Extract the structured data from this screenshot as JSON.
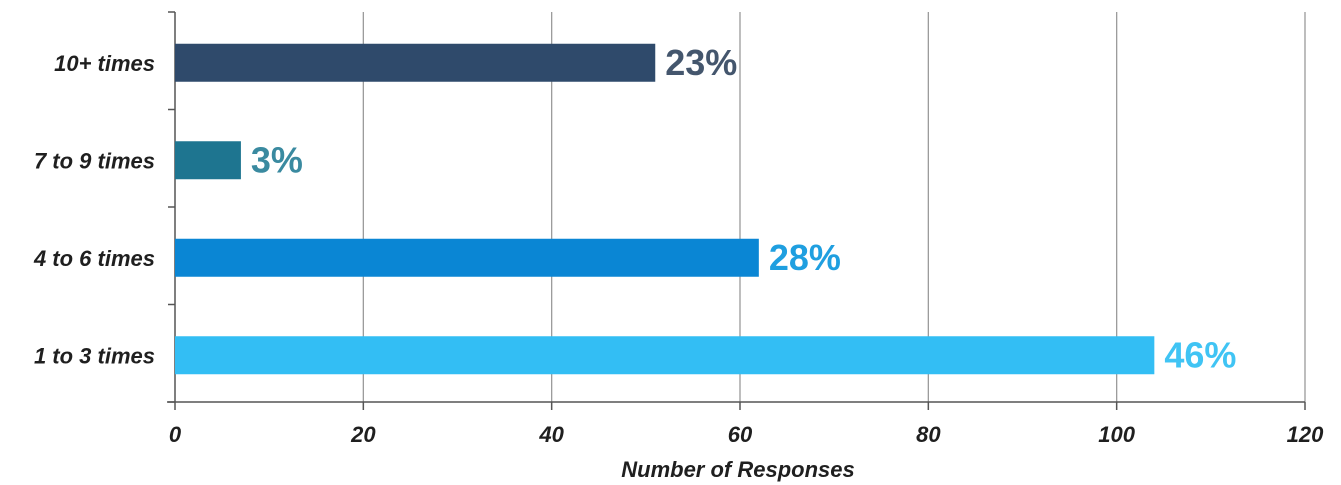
{
  "chart_data": {
    "type": "bar",
    "orientation": "horizontal",
    "title": "",
    "xlabel": "Number of Responses",
    "ylabel": "",
    "xlim": [
      0,
      120
    ],
    "x_ticks": [
      0,
      20,
      40,
      60,
      80,
      100,
      120
    ],
    "grid": "vertical",
    "categories": [
      "10+ times",
      "7 to 9 times",
      "4 to 6 times",
      "1 to 3 times"
    ],
    "values": [
      51,
      7,
      62,
      104
    ],
    "data_labels": [
      "23%",
      "3%",
      "28%",
      "46%"
    ],
    "bar_colors": [
      "#2f4a6b",
      "#1e7590",
      "#0a86d4",
      "#33bef4"
    ],
    "label_colors": [
      "#44566d",
      "#3a8aa0",
      "#1f9fe0",
      "#40c4f4"
    ]
  }
}
